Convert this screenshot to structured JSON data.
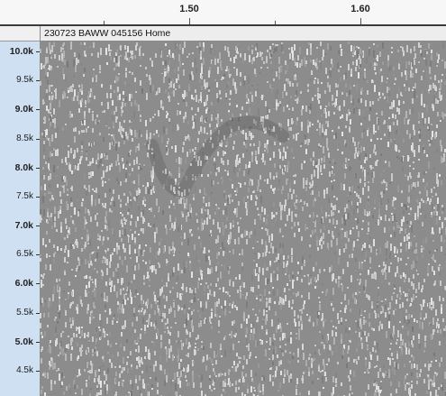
{
  "time_ruler": {
    "major_ticks": [
      {
        "label": "1.50",
        "t": 1.5
      },
      {
        "label": "1.60",
        "t": 1.6
      }
    ],
    "minor_ticks": [
      1.45,
      1.55,
      1.65
    ]
  },
  "track": {
    "name": "230723 BAWW 045156 Home"
  },
  "freq_axis": {
    "labels": [
      {
        "label": "10.0k",
        "hz": 10000,
        "major": true
      },
      {
        "label": "9.5k",
        "hz": 9500,
        "major": false
      },
      {
        "label": "9.0k",
        "hz": 9000,
        "major": true
      },
      {
        "label": "8.5k",
        "hz": 8500,
        "major": false
      },
      {
        "label": "8.0k",
        "hz": 8000,
        "major": true
      },
      {
        "label": "7.5k",
        "hz": 7500,
        "major": false
      },
      {
        "label": "7.0k",
        "hz": 7000,
        "major": true
      },
      {
        "label": "6.5k",
        "hz": 6500,
        "major": false
      },
      {
        "label": "6.0k",
        "hz": 6000,
        "major": true
      },
      {
        "label": "5.5k",
        "hz": 5500,
        "major": false
      },
      {
        "label": "5.0k",
        "hz": 5000,
        "major": true
      },
      {
        "label": "4.5k",
        "hz": 4500,
        "major": false
      }
    ]
  },
  "colors": {
    "spectrogram_base": "#8c8c8c",
    "noise_light": "#d8d8d8",
    "signal_dark": "#5a5a5a",
    "axis_bg": "#cfe0f2"
  }
}
